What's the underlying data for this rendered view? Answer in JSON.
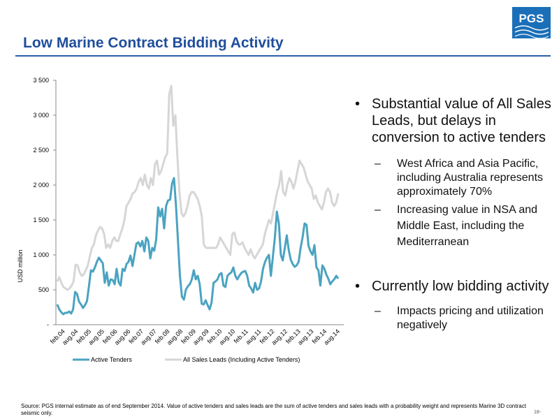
{
  "slide": {
    "title": "Low Marine Contract Bidding Activity",
    "logo_text": "PGS",
    "page_number": "18-",
    "footnote": "Source: PGS internal estimate as of end September 2014. Value of active tenders and sales leads are the sum of active tenders and sales leads with a probability weight and represents Marine 3D contract seismic only."
  },
  "bullets": {
    "b1": "Substantial value of All Sales Leads, but delays in conversion to active tenders",
    "b1_sub1": "West Africa and Asia Pacific, including Australia represents approximately 70%",
    "b1_sub2": "Increasing value in NSA and Middle East, including the Mediterranean",
    "b2": "Currently low bidding activity",
    "b2_sub1": "Impacts pricing and utilization negatively"
  },
  "colors": {
    "title": "#1f4e9c",
    "active_tenders": "#4aa3c1",
    "all_sales_leads": "#d6d6d6",
    "logo_blue": "#1a6fb8"
  },
  "chart_data": {
    "type": "line",
    "title": "",
    "xlabel": "",
    "ylabel": "USD million",
    "ylim": [
      0,
      3500
    ],
    "yticks": [
      0,
      500,
      1000,
      1500,
      2000,
      2500,
      3000,
      3500
    ],
    "ytick_labels": [
      "-",
      "500",
      "1 000",
      "1 500",
      "2 000",
      "2 500",
      "3 000",
      "3 500"
    ],
    "x_tick_labels": [
      "feb.04",
      "aug.04",
      "feb.05",
      "aug.05",
      "feb.06",
      "aug.06",
      "feb.07",
      "aug.07",
      "feb.08",
      "aug.08",
      "feb.09",
      "aug.09",
      "feb.10",
      "aug.10",
      "feb.11",
      "aug.11",
      "feb.12",
      "aug.12",
      "feb.13",
      "aug.13",
      "feb.14",
      "aug.14"
    ],
    "x_start": "2004-02",
    "x_end": "2014-09",
    "legend_position": "bottom",
    "grid": false,
    "series": [
      {
        "name": "Active Tenders",
        "values": [
          290,
          220,
          180,
          150,
          170,
          170,
          190,
          160,
          220,
          470,
          440,
          330,
          290,
          240,
          280,
          340,
          550,
          780,
          760,
          820,
          900,
          960,
          920,
          880,
          600,
          750,
          560,
          650,
          640,
          580,
          800,
          610,
          560,
          800,
          770,
          870,
          900,
          990,
          840,
          1000,
          1160,
          1180,
          1120,
          1200,
          1050,
          1250,
          1200,
          950,
          1100,
          1060,
          1220,
          1680,
          1550,
          1660,
          1380,
          1700,
          1780,
          1790,
          2020,
          2100,
          1700,
          1200,
          700,
          400,
          360,
          500,
          550,
          580,
          650,
          780,
          650,
          700,
          580,
          300,
          290,
          350,
          280,
          220,
          320,
          600,
          620,
          650,
          720,
          740,
          560,
          540,
          700,
          730,
          750,
          820,
          700,
          650,
          700,
          740,
          760,
          770,
          700,
          560,
          520,
          460,
          600,
          500,
          520,
          620,
          800,
          900,
          960,
          1000,
          700,
          980,
          1250,
          1620,
          1450,
          1000,
          920,
          1100,
          1280,
          1070,
          930,
          870,
          830,
          850,
          900,
          1100,
          1250,
          1450,
          1430,
          1130,
          1050,
          1000,
          1140,
          820,
          780,
          560,
          850,
          800,
          720,
          660,
          580,
          620,
          650,
          700,
          660
        ]
      },
      {
        "name": "All Sales Leads (Including Active Tenders)",
        "values": [
          620,
          680,
          600,
          540,
          520,
          500,
          520,
          560,
          620,
          860,
          850,
          750,
          700,
          720,
          780,
          850,
          980,
          1100,
          1150,
          1280,
          1350,
          1400,
          1380,
          1300,
          1100,
          1150,
          1100,
          1200,
          1250,
          1200,
          1200,
          1300,
          1380,
          1500,
          1700,
          1750,
          1800,
          1880,
          1900,
          1950,
          2050,
          2100,
          2000,
          2150,
          2000,
          1950,
          2100,
          2000,
          2300,
          2350,
          2150,
          2200,
          2300,
          2400,
          2450,
          3300,
          3420,
          2850,
          3000,
          2400,
          1900,
          1600,
          1550,
          1600,
          1700,
          1850,
          1900,
          1900,
          1850,
          1800,
          1700,
          1550,
          1150,
          1100,
          1100,
          1100,
          1100,
          1100,
          1100,
          1150,
          1250,
          1200,
          1150,
          1100,
          1050,
          1000,
          1300,
          1320,
          1200,
          1150,
          1150,
          1180,
          1100,
          1050,
          1000,
          1080,
          1000,
          950,
          1000,
          1050,
          1100,
          1150,
          1300,
          1400,
          1500,
          1450,
          1600,
          1750,
          1900,
          2000,
          2200,
          1900,
          1850,
          2000,
          2100,
          2050,
          1950,
          2050,
          2200,
          2350,
          2300,
          2250,
          2150,
          2050,
          2000,
          1950,
          1800,
          1850,
          1750,
          1700,
          1650,
          1750,
          1900,
          1950,
          1900,
          1750,
          1700,
          1750,
          1880
        ]
      }
    ]
  }
}
